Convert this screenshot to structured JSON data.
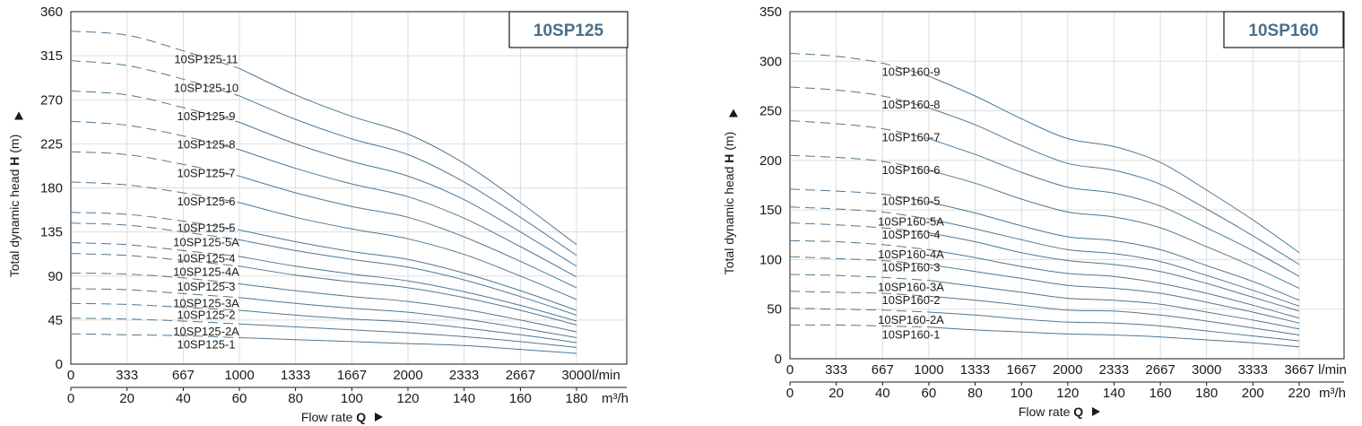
{
  "chart_data": [
    {
      "type": "line",
      "title": "10SP125",
      "ylabel_prefix": "Total dynamic head ",
      "ylabel_symbol": "H",
      "ylabel_suffix": " (m)",
      "xlabel_prefix": "Flow rate ",
      "xlabel_symbol": "Q",
      "ylim": [
        0,
        360
      ],
      "yticks": [
        "0",
        "45",
        "90",
        "135",
        "180",
        "225",
        "270",
        "315",
        "360"
      ],
      "xlim": [
        0,
        3000
      ],
      "xticks_lmin": [
        "0",
        "333",
        "667",
        "1000",
        "1333",
        "1667",
        "2000",
        "2333",
        "2667",
        "3000"
      ],
      "unit_lmin": "l/min",
      "xticks_m3h": [
        "0",
        "20",
        "40",
        "60",
        "80",
        "100",
        "120",
        "140",
        "160",
        "180"
      ],
      "unit_m3h": "m³/h",
      "dashed_end_x": 1000,
      "x": [
        0,
        333,
        667,
        1000,
        1333,
        1667,
        2000,
        2333,
        2667,
        3000
      ],
      "series": [
        {
          "name": "10SP125-11",
          "values": [
            340,
            336,
            320,
            302,
            275,
            253,
            235,
            205,
            165,
            122
          ]
        },
        {
          "name": "10SP125-10",
          "values": [
            310,
            305,
            291,
            274,
            250,
            230,
            214,
            186,
            150,
            111
          ]
        },
        {
          "name": "10SP125-9",
          "values": [
            279,
            275,
            262,
            247,
            225,
            207,
            192,
            168,
            135,
            100
          ]
        },
        {
          "name": "10SP125-8",
          "values": [
            248,
            244,
            233,
            219,
            200,
            184,
            171,
            149,
            120,
            89
          ]
        },
        {
          "name": "10SP125-7",
          "values": [
            217,
            214,
            204,
            192,
            175,
            161,
            150,
            130,
            105,
            78
          ]
        },
        {
          "name": "10SP125-6",
          "values": [
            186,
            183,
            175,
            165,
            150,
            138,
            128,
            112,
            90,
            66
          ]
        },
        {
          "name": "10SP125-5",
          "values": [
            155,
            153,
            146,
            137,
            125,
            115,
            107,
            93,
            75,
            55
          ]
        },
        {
          "name": "10SP125-5A",
          "values": [
            144,
            142,
            135,
            127,
            116,
            107,
            99,
            86,
            69,
            50
          ]
        },
        {
          "name": "10SP125-4",
          "values": [
            124,
            122,
            116,
            110,
            100,
            92,
            85,
            74,
            60,
            44
          ]
        },
        {
          "name": "10SP125-4A",
          "values": [
            113,
            111,
            106,
            100,
            91,
            84,
            78,
            68,
            55,
            40
          ]
        },
        {
          "name": "10SP125-3",
          "values": [
            93,
            92,
            88,
            82,
            75,
            69,
            64,
            56,
            45,
            33
          ]
        },
        {
          "name": "10SP125-3A",
          "values": [
            77,
            76,
            72,
            68,
            62,
            57,
            53,
            46,
            37,
            27
          ]
        },
        {
          "name": "10SP125-2",
          "values": [
            62,
            61,
            58,
            55,
            50,
            46,
            43,
            37,
            30,
            22
          ]
        },
        {
          "name": "10SP125-2A",
          "values": [
            47,
            46,
            44,
            41,
            38,
            35,
            32,
            28,
            23,
            17
          ]
        },
        {
          "name": "10SP125-1",
          "values": [
            31,
            30,
            29,
            27,
            25,
            23,
            21,
            19,
            15,
            11
          ]
        }
      ]
    },
    {
      "type": "line",
      "title": "10SP160",
      "ylabel_prefix": "Total dynamic head ",
      "ylabel_symbol": "H",
      "ylabel_suffix": " (m)",
      "xlabel_prefix": "Flow rate ",
      "xlabel_symbol": "Q",
      "ylim": [
        0,
        350
      ],
      "yticks": [
        "0",
        "50",
        "100",
        "150",
        "200",
        "250",
        "300",
        "350"
      ],
      "xlim": [
        0,
        3667
      ],
      "xticks_lmin": [
        "0",
        "333",
        "667",
        "1000",
        "1333",
        "1667",
        "2000",
        "2333",
        "2667",
        "3000",
        "3333",
        "3667"
      ],
      "unit_lmin": "l/min",
      "xticks_m3h": [
        "0",
        "20",
        "40",
        "60",
        "80",
        "100",
        "120",
        "140",
        "160",
        "180",
        "200",
        "220"
      ],
      "unit_m3h": "m³/h",
      "dashed_end_x": 1000,
      "x": [
        0,
        333,
        667,
        1000,
        1333,
        1667,
        2000,
        2333,
        2667,
        3000,
        3333,
        3667
      ],
      "series": [
        {
          "name": "10SP160-9",
          "values": [
            308,
            305,
            298,
            285,
            265,
            242,
            222,
            214,
            198,
            170,
            140,
            107
          ]
        },
        {
          "name": "10SP160-8",
          "values": [
            274,
            271,
            265,
            253,
            236,
            215,
            197,
            190,
            176,
            151,
            124,
            95
          ]
        },
        {
          "name": "10SP160-7",
          "values": [
            240,
            237,
            232,
            222,
            206,
            188,
            173,
            167,
            154,
            132,
            109,
            83
          ]
        },
        {
          "name": "10SP160-6",
          "values": [
            205,
            203,
            199,
            190,
            177,
            161,
            148,
            143,
            132,
            113,
            93,
            71
          ]
        },
        {
          "name": "10SP160-5",
          "values": [
            171,
            169,
            166,
            158,
            147,
            134,
            123,
            119,
            110,
            94,
            78,
            59
          ]
        },
        {
          "name": "10SP160-5A",
          "values": [
            153,
            151,
            148,
            141,
            131,
            120,
            110,
            106,
            98,
            84,
            69,
            53
          ]
        },
        {
          "name": "10SP160-4",
          "values": [
            137,
            135,
            132,
            127,
            118,
            107,
            99,
            95,
            88,
            76,
            62,
            48
          ]
        },
        {
          "name": "10SP160-4A",
          "values": [
            119,
            118,
            115,
            110,
            102,
            93,
            86,
            83,
            76,
            66,
            54,
            41
          ]
        },
        {
          "name": "10SP160-3",
          "values": [
            103,
            101,
            99,
            95,
            88,
            81,
            74,
            71,
            66,
            57,
            47,
            36
          ]
        },
        {
          "name": "10SP160-3A",
          "values": [
            85,
            84,
            82,
            79,
            73,
            67,
            61,
            59,
            55,
            47,
            39,
            30
          ]
        },
        {
          "name": "10SP160-2",
          "values": [
            68,
            67,
            66,
            63,
            59,
            54,
            49,
            48,
            44,
            38,
            31,
            24
          ]
        },
        {
          "name": "10SP160-2A",
          "values": [
            51,
            50,
            49,
            47,
            44,
            40,
            37,
            36,
            33,
            28,
            23,
            18
          ]
        },
        {
          "name": "10SP160-1",
          "values": [
            34,
            34,
            33,
            32,
            29,
            27,
            25,
            24,
            22,
            19,
            16,
            12
          ]
        }
      ]
    }
  ],
  "colors": {
    "curve": "#4f7894",
    "grid": "#dddddd",
    "axis": "#1a1a1a",
    "badge_text": "#4a6f8a"
  }
}
